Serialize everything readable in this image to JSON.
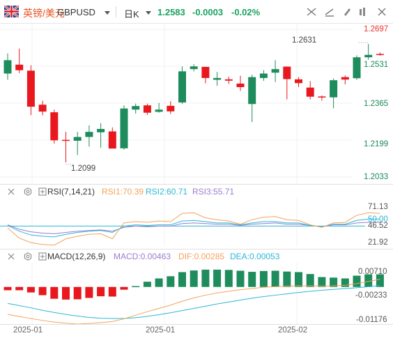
{
  "header": {
    "symbol_cn": "英镑/美元",
    "symbol_code": "GBPUSD",
    "period": "日K",
    "price": "1.2583",
    "change": "-0.0003",
    "change_pct": "-0.02%"
  },
  "toolbar": {
    "icons": [
      "crosshair-icon",
      "draw-line-icon",
      "settings-icon",
      "indicators-icon",
      "fullscreen-icon",
      "close-icon"
    ]
  },
  "price_axis": {
    "labels": [
      "1.2697",
      "1.2531",
      "1.2365",
      "1.2199",
      "1.2033"
    ],
    "current_color": "#e8342c"
  },
  "annotations": {
    "high": "1.2631",
    "low": "1.2099"
  },
  "rsi": {
    "title": "RSI(7,14,21)",
    "rsi1": "RSI1:70.39",
    "rsi2": "RSI2:60.71",
    "rsi3": "RSI3:55.71",
    "axis": [
      "71.13",
      "50.00",
      "46.52",
      "21.92"
    ]
  },
  "macd": {
    "title": "MACD(12,26,9)",
    "macd": "MACD:0.00463",
    "dif": "DIF:0.00285",
    "dea": "DEA:0.00053",
    "axis": [
      "0.00710",
      "-0.00233",
      "-0.01176"
    ]
  },
  "x_axis": [
    "2025-01",
    "2025-01",
    "2025-02"
  ],
  "colors": {
    "up": "#1e8c5c",
    "down": "#e8181e",
    "rsi1": "#f3a25a",
    "rsi2": "#2bb7d6",
    "rsi3": "#9a7ccf",
    "dif": "#f3a25a",
    "dea": "#2bb7d6",
    "accent_orange": "#e8501e",
    "price_green": "#1aa261"
  },
  "chart_data": {
    "type": "candlestick",
    "y_range": [
      1.2033,
      1.2697
    ],
    "candles": [
      {
        "o": 1.2498,
        "h": 1.2588,
        "l": 1.247,
        "c": 1.2558
      },
      {
        "o": 1.2538,
        "h": 1.261,
        "l": 1.25,
        "c": 1.2513
      },
      {
        "o": 1.2511,
        "h": 1.2535,
        "l": 1.2311,
        "c": 1.2349
      },
      {
        "o": 1.2358,
        "h": 1.2376,
        "l": 1.231,
        "c": 1.2327
      },
      {
        "o": 1.2324,
        "h": 1.2336,
        "l": 1.2183,
        "c": 1.2198
      },
      {
        "o": 1.22,
        "h": 1.2236,
        "l": 1.2099,
        "c": 1.2199
      },
      {
        "o": 1.2196,
        "h": 1.2236,
        "l": 1.2132,
        "c": 1.2213
      },
      {
        "o": 1.2213,
        "h": 1.2265,
        "l": 1.217,
        "c": 1.2236
      },
      {
        "o": 1.2234,
        "h": 1.2275,
        "l": 1.2165,
        "c": 1.2249
      },
      {
        "o": 1.2238,
        "h": 1.2256,
        "l": 1.2162,
        "c": 1.2161
      },
      {
        "o": 1.2162,
        "h": 1.2355,
        "l": 1.2156,
        "c": 1.2341
      },
      {
        "o": 1.2336,
        "h": 1.2363,
        "l": 1.2318,
        "c": 1.2352
      },
      {
        "o": 1.2355,
        "h": 1.2363,
        "l": 1.2312,
        "c": 1.2322
      },
      {
        "o": 1.2326,
        "h": 1.2366,
        "l": 1.2322,
        "c": 1.2336
      },
      {
        "o": 1.2353,
        "h": 1.2374,
        "l": 1.2316,
        "c": 1.2328
      },
      {
        "o": 1.2368,
        "h": 1.253,
        "l": 1.2362,
        "c": 1.2508
      },
      {
        "o": 1.2518,
        "h": 1.254,
        "l": 1.2508,
        "c": 1.253
      },
      {
        "o": 1.2528,
        "h": 1.2528,
        "l": 1.2454,
        "c": 1.2478
      },
      {
        "o": 1.247,
        "h": 1.2505,
        "l": 1.2443,
        "c": 1.2478
      },
      {
        "o": 1.2472,
        "h": 1.2484,
        "l": 1.2451,
        "c": 1.2466
      },
      {
        "o": 1.2453,
        "h": 1.2488,
        "l": 1.242,
        "c": 1.2437
      },
      {
        "o": 1.2361,
        "h": 1.2493,
        "l": 1.228,
        "c": 1.2482
      },
      {
        "o": 1.2478,
        "h": 1.2513,
        "l": 1.2465,
        "c": 1.2498
      },
      {
        "o": 1.2502,
        "h": 1.2558,
        "l": 1.246,
        "c": 1.2518
      },
      {
        "o": 1.2529,
        "h": 1.253,
        "l": 1.2382,
        "c": 1.2473
      },
      {
        "o": 1.2472,
        "h": 1.2482,
        "l": 1.2437,
        "c": 1.2455
      },
      {
        "o": 1.2435,
        "h": 1.2464,
        "l": 1.2382,
        "c": 1.2394
      },
      {
        "o": 1.2395,
        "h": 1.24,
        "l": 1.2376,
        "c": 1.2392
      },
      {
        "o": 1.2391,
        "h": 1.2476,
        "l": 1.2342,
        "c": 1.2468
      },
      {
        "o": 1.2482,
        "h": 1.249,
        "l": 1.2449,
        "c": 1.2471
      },
      {
        "o": 1.2477,
        "h": 1.258,
        "l": 1.247,
        "c": 1.2571
      },
      {
        "o": 1.2571,
        "h": 1.2631,
        "l": 1.256,
        "c": 1.2582
      },
      {
        "o": 1.2586,
        "h": 1.2593,
        "l": 1.2578,
        "c": 1.2583
      }
    ],
    "rsi_range": [
      21.92,
      90
    ],
    "rsi1": [
      47,
      31,
      24,
      21,
      20,
      30,
      34,
      37,
      38,
      30,
      55,
      57,
      56,
      58,
      57,
      70,
      71,
      63,
      60,
      58,
      53,
      60,
      64,
      65,
      60,
      59,
      52,
      48,
      55,
      56,
      67,
      71,
      70
    ],
    "rsi2": [
      51,
      42,
      36,
      34,
      33,
      37,
      40,
      42,
      43,
      40,
      50,
      52,
      51,
      52,
      52,
      58,
      59,
      57,
      55,
      55,
      52,
      55,
      57,
      57,
      55,
      55,
      51,
      49,
      53,
      53,
      59,
      61,
      61
    ],
    "rsi3": [
      52,
      45,
      41,
      39,
      38,
      40,
      42,
      43,
      44,
      42,
      48,
      50,
      49,
      50,
      50,
      54,
      55,
      54,
      53,
      53,
      51,
      53,
      54,
      55,
      53,
      53,
      51,
      49,
      52,
      52,
      55,
      56,
      56
    ],
    "macd_range": [
      -0.0125,
      0.0078
    ],
    "macd_hist": [
      -0.0012,
      -0.0012,
      -0.002,
      -0.003,
      -0.0043,
      -0.0046,
      -0.0045,
      -0.004,
      -0.0034,
      -0.0035,
      -0.001,
      0.0003,
      0.0019,
      0.0031,
      0.0039,
      0.0054,
      0.006,
      0.0063,
      0.0063,
      0.0062,
      0.0059,
      0.0055,
      0.0058,
      0.0059,
      0.0056,
      0.0054,
      0.0047,
      0.0036,
      0.0034,
      0.0031,
      0.0041,
      0.0046,
      0.0046
    ],
    "dif": [
      -0.01,
      -0.0108,
      -0.0115,
      -0.0122,
      -0.0128,
      -0.0132,
      -0.0135,
      -0.0133,
      -0.013,
      -0.0126,
      -0.0116,
      -0.0103,
      -0.009,
      -0.0078,
      -0.0066,
      -0.0052,
      -0.004,
      -0.003,
      -0.0022,
      -0.0016,
      -0.001,
      -0.0006,
      -0.0001,
      0.0001,
      0.0003,
      0.0004,
      0.0004,
      0.0003,
      0.0004,
      0.0006,
      0.0012,
      0.002,
      0.0028
    ],
    "dea": [
      -0.006,
      -0.0068,
      -0.0076,
      -0.0085,
      -0.0093,
      -0.01,
      -0.0106,
      -0.0111,
      -0.0114,
      -0.0115,
      -0.0115,
      -0.0112,
      -0.0107,
      -0.0101,
      -0.0094,
      -0.0086,
      -0.0078,
      -0.007,
      -0.0062,
      -0.0055,
      -0.0048,
      -0.0041,
      -0.0035,
      -0.003,
      -0.0025,
      -0.002,
      -0.0016,
      -0.0012,
      -0.0009,
      -0.0006,
      -0.0003,
      0.0001,
      0.0005
    ]
  }
}
